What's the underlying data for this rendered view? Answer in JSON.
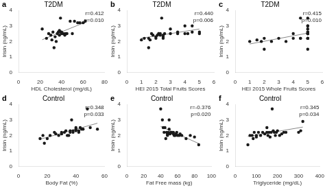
{
  "chart_data": [
    {
      "type": "scatter",
      "panel_label": "a",
      "title": "T2DM",
      "xlabel": "HDL Cholesterol (mg/dL)",
      "ylabel": "Irisin (ng/mL)",
      "annotations": [
        "r=0.412",
        "p=0.010"
      ],
      "xlim": [
        0,
        80
      ],
      "ylim": [
        0,
        4
      ],
      "xticks": [
        0,
        20,
        40,
        60,
        80
      ],
      "yticks": [
        0,
        1,
        2,
        3,
        4
      ],
      "grid": false,
      "series": [
        {
          "type": "scatter",
          "color": "#1a1a1a",
          "x": [
            22,
            26,
            28,
            30,
            31,
            32,
            33,
            34,
            35,
            36,
            37,
            38,
            38,
            39,
            39,
            40,
            40,
            41,
            42,
            43,
            44,
            45,
            48,
            50,
            52,
            55,
            57,
            60,
            62
          ],
          "values": [
            2.8,
            2.2,
            2.5,
            2.4,
            2.1,
            2.6,
            1.6,
            2.3,
            2.0,
            2.5,
            2.6,
            2.4,
            2.7,
            2.6,
            3.5,
            2.5,
            2.6,
            2.5,
            2.5,
            2.4,
            2.5,
            2.5,
            3.3,
            2.5,
            3.3,
            3.2,
            3.2,
            3.2,
            3.3
          ]
        },
        {
          "type": "line",
          "color": "#888888",
          "x": [
            22,
            62
          ],
          "values": [
            2.111,
            3.23
          ]
        }
      ]
    },
    {
      "type": "scatter",
      "panel_label": "b",
      "title": "T2DM",
      "xlabel": "HEI 2015 Total Fruits Scores",
      "ylabel": "Irisin (ng/mL)",
      "annotations": [
        "r=0.440",
        "p=0.006"
      ],
      "xlim": [
        0,
        6
      ],
      "ylim": [
        0,
        4
      ],
      "xticks": [
        0,
        1,
        2,
        3,
        4,
        5,
        6
      ],
      "yticks": [
        0,
        1,
        2,
        3,
        4
      ],
      "grid": false,
      "series": [
        {
          "type": "scatter",
          "color": "#1a1a1a",
          "x": [
            1.0,
            1.2,
            1.5,
            1.5,
            1.6,
            1.7,
            1.8,
            2.0,
            2.0,
            2.1,
            2.2,
            2.2,
            2.3,
            2.3,
            2.4,
            2.5,
            2.5,
            2.5,
            2.6,
            3.0,
            3.0,
            3.5,
            3.5,
            4.0,
            4.0,
            4.2,
            4.5,
            4.5,
            5.0,
            5.0
          ],
          "values": [
            2.1,
            2.2,
            1.6,
            2.2,
            2.1,
            2.5,
            2.4,
            2.2,
            2.3,
            2.4,
            2.5,
            2.5,
            2.5,
            2.4,
            3.5,
            2.2,
            2.3,
            2.4,
            2.5,
            2.5,
            2.8,
            2.5,
            2.6,
            2.5,
            3.0,
            2.5,
            2.6,
            3.0,
            2.6,
            2.5
          ]
        },
        {
          "type": "line",
          "color": "#888888",
          "x": [
            1.0,
            5.0
          ],
          "values": [
            2.207,
            2.797
          ]
        }
      ]
    },
    {
      "type": "scatter",
      "panel_label": "c",
      "title": "T2DM",
      "xlabel": "HEI 2015 Whole Fruits Scores",
      "ylabel": "Irisin (ng/mL)",
      "annotations": [
        "r=0.415",
        "p=0.010"
      ],
      "xlim": [
        0,
        6
      ],
      "ylim": [
        0,
        4
      ],
      "xticks": [
        0,
        1,
        2,
        3,
        4,
        5,
        6
      ],
      "yticks": [
        0,
        1,
        2,
        3,
        4
      ],
      "grid": false,
      "series": [
        {
          "type": "scatter",
          "color": "#1a1a1a",
          "x": [
            1.0,
            1.5,
            1.8,
            2.0,
            2.0,
            2.5,
            3.0,
            3.5,
            4.0,
            4.0,
            4.5,
            4.5,
            4.5,
            5.0,
            5.0,
            5.0,
            5.0,
            5.0,
            5.0,
            5.0,
            5.0,
            5.0,
            5.0,
            5.0,
            5.0,
            5.0,
            5.0,
            5.0
          ],
          "values": [
            2.0,
            2.1,
            2.0,
            1.5,
            2.2,
            2.0,
            2.2,
            2.0,
            2.2,
            2.5,
            2.2,
            2.2,
            3.5,
            2.2,
            2.2,
            2.5,
            2.6,
            2.5,
            2.6,
            3.0,
            2.8,
            3.0,
            2.2,
            1.5,
            2.5,
            3.5,
            2.2,
            2.5
          ]
        },
        {
          "type": "line",
          "color": "#888888",
          "x": [
            1.0,
            5.0
          ],
          "values": [
            1.837,
            2.535
          ]
        }
      ]
    },
    {
      "type": "scatter",
      "panel_label": "d",
      "title": "Control",
      "xlabel": "Body Fat (%)",
      "ylabel": "Irisin (ng/mL)",
      "annotations": [
        "r=0.348",
        "p=0.033"
      ],
      "xlim": [
        0,
        60
      ],
      "ylim": [
        0,
        4
      ],
      "xticks": [
        0,
        20,
        40,
        60
      ],
      "yticks": [
        0,
        1,
        2,
        3,
        4
      ],
      "grid": false,
      "series": [
        {
          "type": "scatter",
          "color": "#1a1a1a",
          "x": [
            15,
            17,
            18,
            20,
            22,
            25,
            26,
            28,
            30,
            30,
            32,
            33,
            34,
            35,
            36,
            36,
            37,
            38,
            38,
            40,
            40,
            40,
            42,
            42,
            43,
            44,
            45,
            48,
            50,
            55
          ],
          "values": [
            1.8,
            2.0,
            1.5,
            1.8,
            2.0,
            2.2,
            2.1,
            2.0,
            2.1,
            2.2,
            2.2,
            2.3,
            2.0,
            2.0,
            2.3,
            2.2,
            3.0,
            2.2,
            2.3,
            2.4,
            2.3,
            2.5,
            2.3,
            2.2,
            2.5,
            2.4,
            2.4,
            3.7,
            2.5,
            2.4
          ]
        },
        {
          "type": "line",
          "color": "#888888",
          "x": [
            15,
            55
          ],
          "values": [
            1.755,
            2.784
          ]
        }
      ]
    },
    {
      "type": "scatter",
      "panel_label": "e",
      "title": "Control",
      "xlabel": "Fat Free mass (kg)",
      "ylabel": "Irisin (ng/mL)",
      "annotations": [
        "r=-0.376",
        "p=0.020"
      ],
      "xlim": [
        0,
        100
      ],
      "ylim": [
        0,
        4
      ],
      "xticks": [
        0,
        20,
        40,
        60,
        80,
        100
      ],
      "yticks": [
        0,
        1,
        2,
        3,
        4
      ],
      "grid": false,
      "series": [
        {
          "type": "scatter",
          "color": "#1a1a1a",
          "x": [
            40,
            42,
            43,
            44,
            45,
            46,
            47,
            48,
            48,
            49,
            50,
            50,
            51,
            52,
            53,
            54,
            55,
            55,
            56,
            57,
            58,
            59,
            60,
            62,
            63,
            65,
            70,
            75,
            80,
            85
          ],
          "values": [
            3.7,
            3.0,
            2.5,
            2.2,
            2.5,
            1.8,
            2.2,
            2.1,
            2.0,
            2.2,
            2.4,
            3.0,
            2.1,
            2.2,
            2.2,
            2.2,
            2.1,
            2.2,
            2.0,
            2.0,
            2.1,
            2.2,
            2.0,
            2.0,
            2.1,
            2.0,
            1.8,
            2.0,
            1.9,
            1.4
          ]
        },
        {
          "type": "line",
          "color": "#888888",
          "x": [
            40,
            85
          ],
          "values": [
            2.579,
            1.482
          ]
        }
      ]
    },
    {
      "type": "scatter",
      "panel_label": "f",
      "title": "Control",
      "xlabel": "Triglyceride (mg/dL)",
      "ylabel": "Irisin (ng/mL)",
      "annotations": [
        "r=0.345",
        "p=0.034"
      ],
      "xlim": [
        0,
        400
      ],
      "ylim": [
        0,
        4
      ],
      "xticks": [
        0,
        100,
        200,
        300,
        400
      ],
      "yticks": [
        0,
        1,
        2,
        3,
        4
      ],
      "grid": false,
      "series": [
        {
          "type": "scatter",
          "color": "#1a1a1a",
          "x": [
            60,
            70,
            80,
            85,
            90,
            100,
            100,
            110,
            120,
            130,
            140,
            150,
            150,
            155,
            160,
            165,
            170,
            175,
            180,
            185,
            190,
            195,
            200,
            210,
            220,
            230,
            240,
            300,
            310,
            320
          ],
          "values": [
            1.4,
            2.0,
            2.0,
            1.8,
            2.2,
            2.0,
            1.9,
            2.2,
            2.0,
            2.2,
            2.1,
            2.2,
            2.5,
            2.0,
            2.2,
            1.9,
            2.2,
            3.7,
            2.3,
            2.2,
            2.0,
            2.2,
            2.3,
            2.0,
            2.1,
            2.2,
            2.2,
            2.2,
            2.3,
            2.9
          ]
        },
        {
          "type": "line",
          "color": "#888888",
          "x": [
            60,
            320
          ],
          "values": [
            1.933,
            2.537
          ]
        }
      ]
    }
  ]
}
